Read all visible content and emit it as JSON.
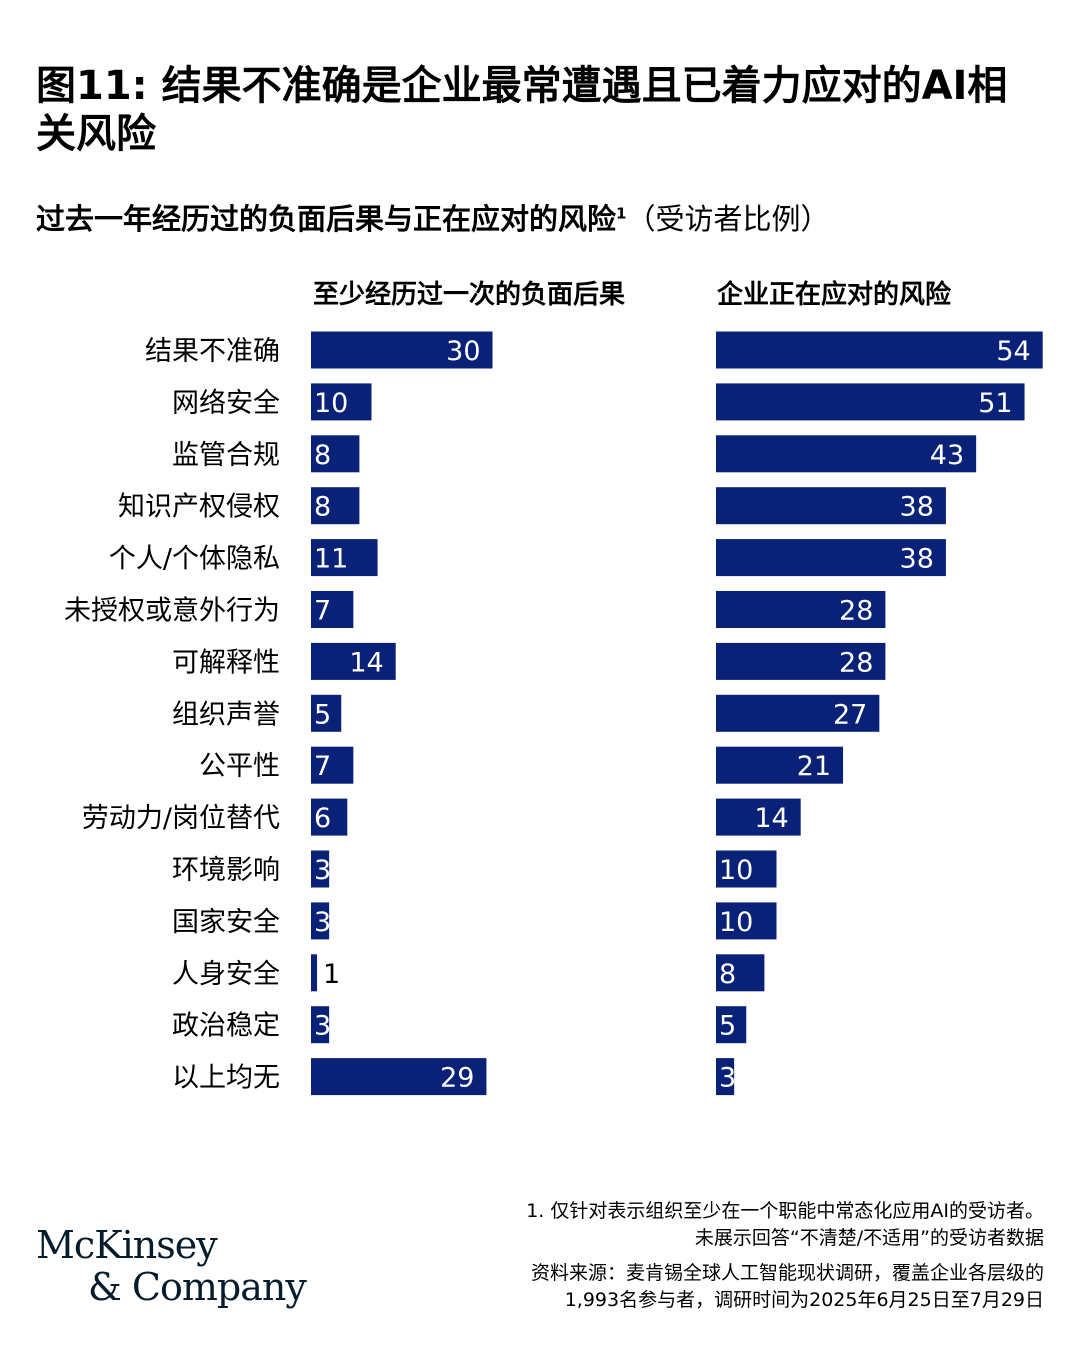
{
  "title": "图11: 结果不准确是企业最常遭遇且已着力应对的AI相关风险",
  "subtitle": "过去一年经历过的负面后果与正在应对的风险",
  "subtitle_sup": "1",
  "subtitle_unit": "（受访者比例）",
  "colors": {
    "bar": "#0a2178",
    "label_inside": "#ffffff",
    "label_outside": "#000000"
  },
  "chart_data": [
    {
      "type": "bar",
      "orientation": "horizontal",
      "title": "至少经历过一次的负面后果",
      "categories": [
        "结果不准确",
        "网络安全",
        "监管合规",
        "知识产权侵权",
        "个人/个体隐私",
        "未授权或意外行为",
        "可解释性",
        "组织声誉",
        "公平性",
        "劳动力/岗位替代",
        "环境影响",
        "国家安全",
        "人身安全",
        "政治稳定",
        "以上均无"
      ],
      "values": [
        30,
        10,
        8,
        8,
        11,
        7,
        14,
        5,
        7,
        6,
        3,
        3,
        1,
        3,
        29
      ],
      "grid": false
    },
    {
      "type": "bar",
      "orientation": "horizontal",
      "title": "企业正在应对的风险",
      "categories": [
        "结果不准确",
        "网络安全",
        "监管合规",
        "知识产权侵权",
        "个人/个体隐私",
        "未授权或意外行为",
        "可解释性",
        "组织声誉",
        "公平性",
        "劳动力/岗位替代",
        "环境影响",
        "国家安全",
        "人身安全",
        "政治稳定",
        "以上均无"
      ],
      "values": [
        54,
        51,
        43,
        38,
        38,
        28,
        28,
        27,
        21,
        14,
        10,
        10,
        8,
        5,
        3
      ],
      "grid": false
    }
  ],
  "footnote_1": "1.   仅针对表示组织至少在一个职能中常态化应用AI的受访者。",
  "footnote_2": "未展示回答“不清楚/不适用”的受访者数据",
  "source_1": "资料来源：麦肯锡全球人工智能现状调研，覆盖企业各层级的",
  "source_2": "1,993名参与者，调研时间为2025年6月25日至7月29日",
  "logo": {
    "line1": "McKinsey",
    "line2": "& Company"
  }
}
